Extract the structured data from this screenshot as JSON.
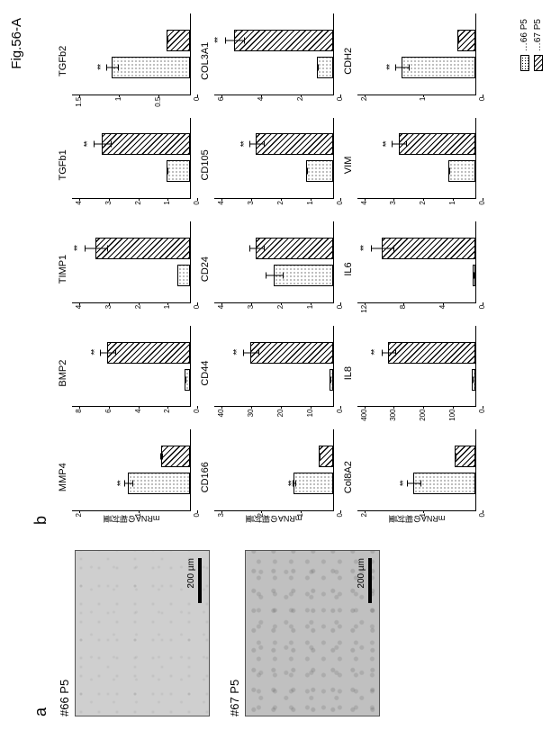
{
  "figure_label": "Fig.56-A",
  "panel_a": {
    "letter": "a",
    "images": [
      {
        "label": "#66 P5",
        "scale_text": "200 µm",
        "tex_class": "tex1"
      },
      {
        "label": "#67 P5",
        "scale_text": "200 µm",
        "tex_class": "tex2"
      }
    ]
  },
  "panel_b": {
    "letter": "b",
    "y_axis_label": "mRNAの相対量",
    "legend": [
      {
        "label": "…66 P5",
        "class": "dotted"
      },
      {
        "label": "…67 P5",
        "class": "hatched"
      }
    ],
    "bar_colors": {
      "dotted": "#ffffff",
      "hatched": "#ffffff"
    },
    "title_fontsize": 11,
    "tick_fontsize": 8,
    "charts": [
      {
        "title": "MMP4",
        "ymax": 2,
        "yticks": [
          0,
          1,
          2
        ],
        "bars": [
          {
            "v": 1.05,
            "e": 0.15,
            "sig": "**"
          },
          {
            "v": 0.5,
            "e": 0.08
          }
        ]
      },
      {
        "title": "BMP2",
        "ymax": 8,
        "yticks": [
          0,
          2,
          4,
          6,
          8
        ],
        "bars": [
          {
            "v": 0.4,
            "e": 0.2
          },
          {
            "v": 5.6,
            "e": 0.8,
            "sig": "**"
          }
        ]
      },
      {
        "title": "TIMP1",
        "ymax": 4,
        "yticks": [
          0,
          1,
          2,
          3,
          4
        ],
        "bars": [
          {
            "v": 0.45,
            "e": 0.2
          },
          {
            "v": 3.2,
            "e": 0.5,
            "sig": "**"
          }
        ]
      },
      {
        "title": "TGFb1",
        "ymax": 4,
        "yticks": [
          0,
          1,
          2,
          3,
          4
        ],
        "bars": [
          {
            "v": 0.8,
            "e": 0.2
          },
          {
            "v": 3.0,
            "e": 0.4,
            "sig": "**"
          }
        ]
      },
      {
        "title": "TGFb2",
        "ymax": 1.5,
        "yticks": [
          0,
          0.5,
          1,
          1.5
        ],
        "bars": [
          {
            "v": 1.0,
            "e": 0.12,
            "sig": "**"
          },
          {
            "v": 0.3,
            "e": 0.08
          }
        ]
      },
      {
        "title": "CD166",
        "ymax": 3,
        "yticks": [
          0,
          1,
          2,
          3
        ],
        "bars": [
          {
            "v": 1.0,
            "e": 0.15,
            "sig": "**"
          },
          {
            "v": 0.35,
            "e": 0.1
          }
        ]
      },
      {
        "title": "CD44",
        "ymax": 40,
        "yticks": [
          0,
          10,
          20,
          30,
          40
        ],
        "bars": [
          {
            "v": 1.1,
            "e": 0.5
          },
          {
            "v": 28,
            "e": 4,
            "sig": "**"
          }
        ]
      },
      {
        "title": "CD24",
        "ymax": 4,
        "yticks": [
          0,
          1,
          2,
          3,
          4
        ],
        "bars": [
          {
            "v": 2.0,
            "e": 0.6
          },
          {
            "v": 2.6,
            "e": 0.4
          }
        ]
      },
      {
        "title": "CD105",
        "ymax": 4,
        "yticks": [
          0,
          1,
          2,
          3,
          4
        ],
        "bars": [
          {
            "v": 0.9,
            "e": 0.2
          },
          {
            "v": 2.6,
            "e": 0.4,
            "sig": "**"
          }
        ]
      },
      {
        "title": "COL3A1",
        "ymax": 6,
        "yticks": [
          0,
          2,
          4,
          6
        ],
        "bars": [
          {
            "v": 0.8,
            "e": 0.2
          },
          {
            "v": 5.0,
            "e": 0.6,
            "sig": "**"
          }
        ]
      },
      {
        "title": "Col8A2",
        "ymax": 2,
        "yticks": [
          0,
          1,
          2
        ],
        "bars": [
          {
            "v": 1.05,
            "e": 0.25,
            "sig": "**"
          },
          {
            "v": 0.35,
            "e": 0.05
          }
        ]
      },
      {
        "title": "IL8",
        "ymax": 400,
        "yticks": [
          0,
          100,
          200,
          300,
          400
        ],
        "bars": [
          {
            "v": 12,
            "e": 8
          },
          {
            "v": 295,
            "e": 35,
            "sig": "**"
          }
        ]
      },
      {
        "title": "IL6",
        "ymax": 12,
        "yticks": [
          0,
          4,
          8,
          12
        ],
        "bars": [
          {
            "v": 0.3,
            "e": 0.2
          },
          {
            "v": 9.5,
            "e": 1.5,
            "sig": "**"
          }
        ]
      },
      {
        "title": "VIM",
        "ymax": 4,
        "yticks": [
          0,
          1,
          2,
          3,
          4
        ],
        "bars": [
          {
            "v": 0.9,
            "e": 0.15
          },
          {
            "v": 2.6,
            "e": 0.4,
            "sig": "**"
          }
        ]
      },
      {
        "title": "CDH2",
        "ymax": 2,
        "yticks": [
          0,
          1,
          2
        ],
        "bars": [
          {
            "v": 1.25,
            "e": 0.2,
            "sig": "**"
          },
          {
            "v": 0.3,
            "e": 0.05
          }
        ]
      }
    ]
  }
}
